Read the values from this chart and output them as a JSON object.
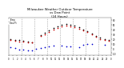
{
  "title": "Milwaukee Weather Outdoor Temperature\nvs Dew Point\n(24 Hours)",
  "title_fontsize": 2.8,
  "background_color": "#ffffff",
  "grid_color": "#888888",
  "xlim": [
    0,
    24
  ],
  "ylim": [
    -15,
    65
  ],
  "yticks": [
    -10,
    0,
    10,
    20,
    30,
    40,
    50,
    60
  ],
  "ytick_labels": [
    "-10",
    "0",
    "10",
    "20",
    "30",
    "40",
    "50",
    "60"
  ],
  "xticks": [
    0,
    1,
    2,
    3,
    4,
    5,
    6,
    7,
    8,
    9,
    10,
    11,
    12,
    13,
    14,
    15,
    16,
    17,
    18,
    19,
    20,
    21,
    22,
    23,
    24
  ],
  "xtick_labels": [
    "0",
    "1",
    "2",
    "3",
    "4",
    "5",
    "6",
    "7",
    "8",
    "9",
    "10",
    "11",
    "12",
    "13",
    "14",
    "15",
    "16",
    "17",
    "18",
    "19",
    "20",
    "21",
    "22",
    "23",
    "0"
  ],
  "temp_x": [
    0.5,
    1.5,
    2.5,
    3.5,
    4.5,
    5.5,
    7.5,
    8.5,
    9.5,
    10.5,
    11.5,
    12.5,
    13.5,
    14.5,
    15.5,
    16.5,
    17.5,
    18.5,
    19.5,
    20.5,
    21.5,
    22.5,
    23.5
  ],
  "temp_y": [
    18,
    16,
    15,
    14,
    13,
    12,
    26,
    30,
    35,
    40,
    44,
    47,
    48,
    47,
    45,
    42,
    38,
    34,
    30,
    25,
    20,
    18,
    16
  ],
  "dew_x": [
    0.5,
    1.5,
    2.5,
    3.5,
    4.5,
    5.5,
    6.5,
    7.5,
    8.5,
    9.5,
    10.5,
    12.5,
    13.5,
    14.5,
    16.5,
    17.5,
    18.5,
    19.5,
    22.5
  ],
  "dew_y": [
    2,
    0,
    -2,
    -3,
    -4,
    -5,
    -1,
    1,
    3,
    4,
    5,
    5,
    4,
    4,
    3,
    8,
    10,
    10,
    8
  ],
  "hi_x": [
    0.5,
    1.5,
    2.5,
    3.5,
    4.5,
    5.5,
    7.5,
    8.5,
    9.5,
    10.5,
    11.5,
    12.5,
    13.5,
    14.5,
    15.5,
    16.5,
    17.5,
    18.5,
    19.5,
    20.5,
    21.5,
    22.5,
    23.5
  ],
  "hi_y": [
    20,
    18,
    17,
    16,
    15,
    13,
    28,
    33,
    38,
    43,
    47,
    50,
    51,
    50,
    48,
    45,
    40,
    36,
    32,
    27,
    22,
    20,
    18
  ],
  "temp_color": "#cc0000",
  "dew_color": "#0000cc",
  "hi_color": "#000000",
  "marker_size": 1.5,
  "vgrid_positions": [
    3,
    6,
    9,
    12,
    15,
    18,
    21
  ],
  "legend_labels": [
    "Temp",
    "Dew Pt"
  ],
  "legend_colors": [
    "#cc0000",
    "#0000cc"
  ]
}
